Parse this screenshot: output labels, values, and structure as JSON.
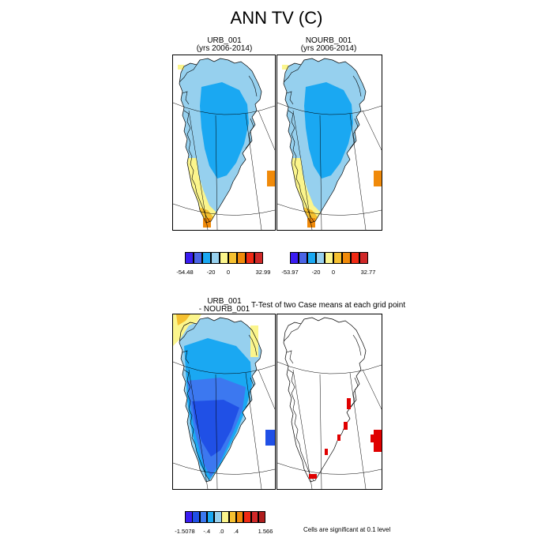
{
  "title": "ANN TV (C)",
  "panels": {
    "urb": {
      "title_line1": "URB_001",
      "title_line2": "(yrs 2006-2014)"
    },
    "nourb": {
      "title_line1": "NOURB_001",
      "title_line2": "(yrs 2006-2014)"
    },
    "diff": {
      "title_line1": "URB_001",
      "title_line2": "- NOURB_001"
    },
    "ttest": {
      "title": "T-Test of two Case means at each grid point"
    }
  },
  "colorbars": {
    "urb": {
      "colors": [
        "#3a1cf2",
        "#4a64e6",
        "#1aa8f2",
        "#96d0ee",
        "#fbf58c",
        "#f5c030",
        "#f08a0a",
        "#f02a14",
        "#d02828"
      ],
      "labels": [
        "-54.48",
        "-20",
        "0",
        "32.99"
      ],
      "label_slots": [
        0,
        3,
        5,
        9
      ]
    },
    "nourb": {
      "colors": [
        "#3a1cf2",
        "#4a64e6",
        "#1aa8f2",
        "#96d0ee",
        "#fbf58c",
        "#f5c030",
        "#f08a0a",
        "#f02a14",
        "#d02828"
      ],
      "labels": [
        "-53.97",
        "-20",
        "0",
        "32.77"
      ],
      "label_slots": [
        0,
        3,
        5,
        9
      ]
    },
    "diff": {
      "colors": [
        "#3a1cf2",
        "#2050e6",
        "#3c78f0",
        "#1aa8f2",
        "#96d0ee",
        "#fbf58c",
        "#f5c030",
        "#f08a0a",
        "#f02a14",
        "#d02828",
        "#b01e1e"
      ],
      "labels": [
        "-1.5078",
        "-.4",
        ".0",
        ".4",
        "1.566"
      ],
      "label_slots": [
        0,
        3,
        5,
        7,
        11
      ]
    }
  },
  "chart_data": [
    {
      "type": "heatmap",
      "title": "URB_001",
      "subtitle": "(yrs 2006-2014)",
      "colorbar_min": -54.48,
      "colorbar_max": 32.99,
      "colorbar_ticks": [
        -54.48,
        -20,
        0,
        32.99
      ]
    },
    {
      "type": "heatmap",
      "title": "NOURB_001",
      "subtitle": "(yrs 2006-2014)",
      "colorbar_min": -53.97,
      "colorbar_max": 32.77,
      "colorbar_ticks": [
        -53.97,
        -20,
        0,
        32.77
      ]
    },
    {
      "type": "heatmap",
      "title": "URB_001 - NOURB_001",
      "colorbar_min": -1.5078,
      "colorbar_max": 1.566,
      "colorbar_ticks": [
        -1.5078,
        -0.4,
        0.0,
        0.4,
        1.566
      ]
    },
    {
      "type": "heatmap",
      "title": "T-Test of two Case means at each grid point",
      "annotation": "Cells are significant at 0.1 level"
    }
  ],
  "footnote": "Cells are significant at 0.1 level"
}
